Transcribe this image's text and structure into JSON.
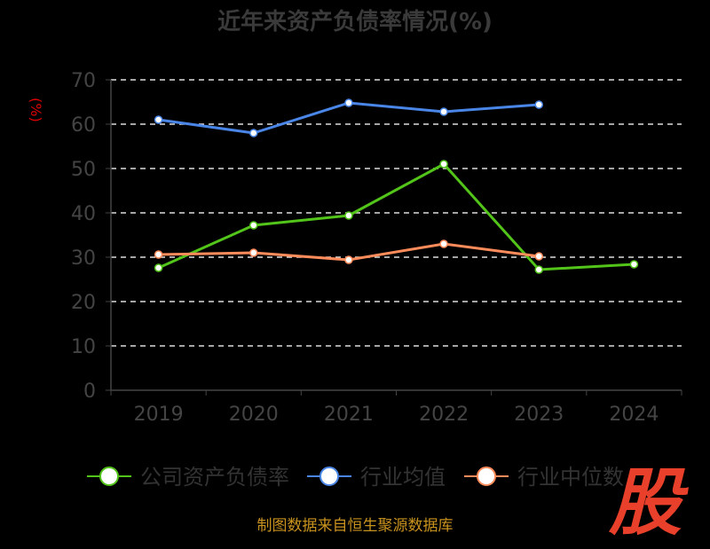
{
  "chart_data": {
    "type": "line",
    "title": "近年来资产负债率情况(%)",
    "ylabel": "(%)",
    "xlabel": "",
    "categories": [
      "2019",
      "2020",
      "2021",
      "2022",
      "2023",
      "2024"
    ],
    "ylim": [
      0,
      70
    ],
    "yticks": [
      0,
      10,
      20,
      30,
      40,
      50,
      60,
      70
    ],
    "grid": true,
    "legend_position": "bottom",
    "series": [
      {
        "name": "公司资产负债率",
        "color": "#52c41a",
        "values": [
          27.6,
          37.2,
          39.4,
          51.0,
          27.2,
          28.4
        ]
      },
      {
        "name": "行业均值",
        "color": "#4a86e8",
        "values": [
          61.0,
          58.0,
          64.8,
          62.8,
          64.4,
          null
        ]
      },
      {
        "name": "行业中位数",
        "color": "#ff8c5a",
        "values": [
          30.6,
          31.0,
          29.4,
          33.0,
          30.2,
          null
        ]
      }
    ]
  },
  "source": "制图数据来自恒生聚源数据库",
  "logo": "股"
}
